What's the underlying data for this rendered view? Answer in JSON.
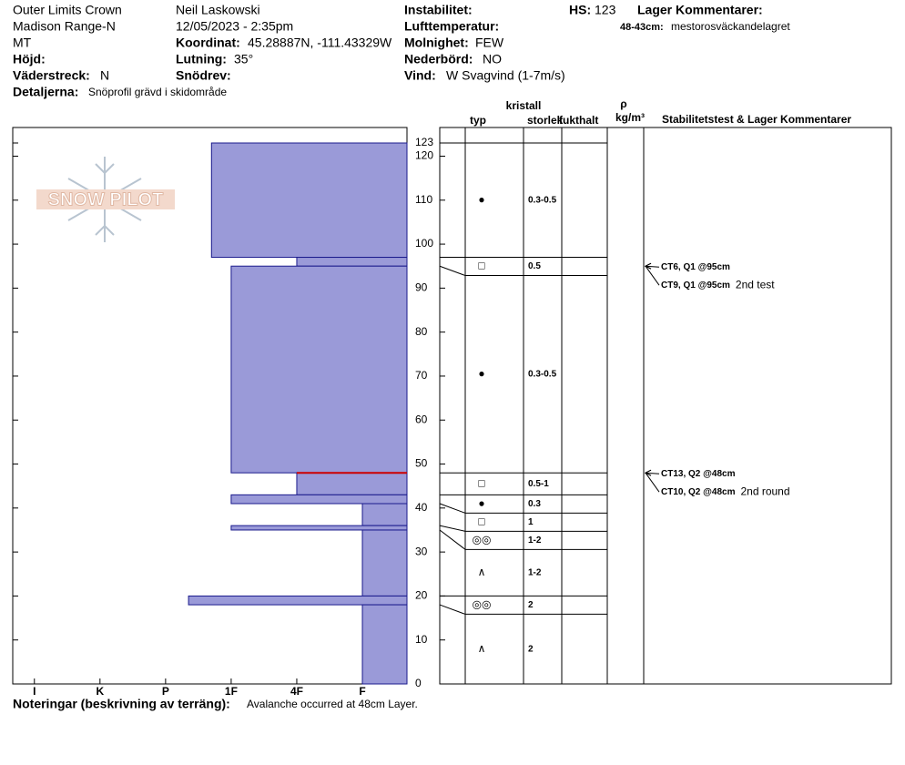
{
  "header": {
    "site": "Outer Limits Crown",
    "range": "Madison Range-N",
    "state": "MT",
    "elevation_label": "Höjd:",
    "aspect_label": "Väderstreck:",
    "aspect": "N",
    "details_label": "Detaljerna:",
    "details": "Snöprofil grävd i skidområde",
    "observer": "Neil Laskowski",
    "datetime": "12/05/2023 - 2:35pm",
    "coord_label": "Koordinat:",
    "coord": "45.28887N, -111.43329W",
    "slope_label": "Lutning:",
    "slope": "35°",
    "wind_loading_label": "Snödrev:",
    "instability_label": "Instabilitet:",
    "air_temp_label": "Lufttemperatur:",
    "sky_label": "Molnighet:",
    "sky": "FEW",
    "precip_label": "Nederbörd:",
    "precip": "NO",
    "wind_label": "Vind:",
    "wind": "W Svagvind (1-7m/s)",
    "hs_label": "HS:",
    "hs": "123",
    "layer_comments_label": "Lager Kommentarer:",
    "layer_comment_range": "48-43cm:",
    "layer_comment": "mestorosväckandelagret",
    "logo": "SNOW PILOT"
  },
  "columns": {
    "crystal": "kristall",
    "type": "typ",
    "size": "storlek",
    "moisture": "fukthalt",
    "density_symbol": "ρ",
    "density_unit": "kg/m³",
    "tests": "Stabilitetstest & Lager Kommentarer"
  },
  "chart_data": {
    "type": "snow-profile",
    "color": "#9a9ad8",
    "edge_color": "#1a1a8c",
    "highlight_color": "#cc0000",
    "ylim": [
      0,
      123
    ],
    "yticks": [
      0,
      10,
      20,
      30,
      40,
      50,
      60,
      70,
      80,
      90,
      100,
      110,
      120,
      123
    ],
    "xlim": [
      0.32,
      6.33
    ],
    "xticks": [
      {
        "value": 6,
        "label": "I"
      },
      {
        "value": 5,
        "label": "K"
      },
      {
        "value": 4,
        "label": "P"
      },
      {
        "value": 3,
        "label": "1F"
      },
      {
        "value": 2,
        "label": "4F"
      },
      {
        "value": 1,
        "label": "F"
      }
    ],
    "layers": {
      "top": [
        123,
        97,
        95,
        48,
        43,
        41,
        36,
        35,
        20,
        18
      ],
      "bottom": [
        97,
        95,
        48,
        43,
        41,
        36,
        35,
        20,
        18,
        0
      ],
      "hardness": [
        3.3,
        2,
        3,
        2,
        3,
        1,
        3,
        1,
        3.65,
        1
      ],
      "highlight": [
        false,
        false,
        false,
        true,
        false,
        false,
        false,
        false,
        false,
        false
      ],
      "grain": [
        "●",
        "□",
        "●",
        "□",
        "●",
        "□",
        "◎◎",
        "∧",
        "◎◎",
        "∧"
      ],
      "size": [
        "0.3-0.5",
        "0.5",
        "0.3-0.5",
        "0.5-1",
        "0.3",
        "1",
        "1-2",
        "1-2",
        "2",
        "2"
      ]
    },
    "tests": [
      {
        "depth": 95,
        "label": "CT6, Q1 @95cm"
      },
      {
        "depth": 95,
        "label": "CT9, Q1 @95cm",
        "comment": "2nd test"
      },
      {
        "depth": 48,
        "label": "CT13, Q2 @48cm"
      },
      {
        "depth": 48,
        "label": "CT10, Q2 @48cm",
        "comment": "2nd round"
      }
    ]
  },
  "footer": {
    "notes_label": "Noteringar (beskrivning av terräng):",
    "notes": "Avalanche occurred at 48cm Layer."
  }
}
